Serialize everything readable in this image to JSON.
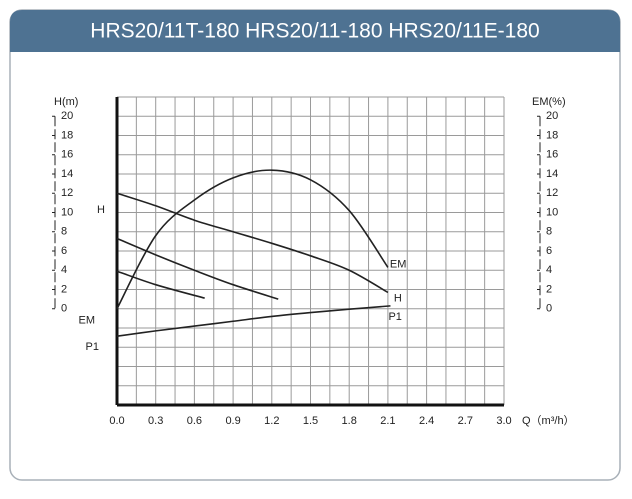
{
  "chart_data": {
    "type": "line",
    "title": "HRS20/11T-180 HRS20/11-180 HRS20/11E-180",
    "y_label": "H(m)",
    "y2_label": "EM(%)",
    "x_label": "Q（m³/h）",
    "xlim": [
      0,
      3.0
    ],
    "xticks": [
      {
        "value": 0,
        "label": "0.0"
      },
      0.3,
      0.6,
      0.9,
      1.2,
      1.5,
      1.8,
      2.1,
      2.4,
      2.7,
      {
        "value": 3,
        "label": "3.0"
      }
    ],
    "ylim": [
      -10,
      22
    ],
    "yticks": [
      0,
      2,
      4,
      6,
      8,
      10,
      12,
      14,
      16,
      18,
      20
    ],
    "y2lim": [
      -10,
      22
    ],
    "y2ticks": [
      0,
      2,
      4,
      6,
      8,
      10,
      12,
      14,
      16,
      18,
      20
    ],
    "grid": true,
    "series": [
      {
        "name": "H",
        "color": "#222222",
        "x": [
          0,
          0.3,
          0.6,
          0.9,
          1.2,
          1.5,
          1.8,
          2.1
        ],
        "values": [
          12,
          10.7,
          9.2,
          8.0,
          6.8,
          5.5,
          4.0,
          1.7
        ]
      },
      {
        "color": "#222222",
        "x": [
          0,
          0.3,
          0.6,
          0.9,
          1.25
        ],
        "values": [
          7.3,
          5.6,
          4.0,
          2.5,
          1.0
        ]
      },
      {
        "color": "#222222",
        "x": [
          0,
          0.3,
          0.68
        ],
        "values": [
          3.9,
          2.5,
          1.1
        ]
      },
      {
        "name": "EM",
        "color": "#222222",
        "axis": "y2",
        "x": [
          0,
          0.3,
          0.6,
          0.9,
          1.2,
          1.5,
          1.8,
          2.1
        ],
        "values": [
          0,
          7.6,
          11.3,
          13.6,
          14.4,
          13.4,
          10.2,
          4.3
        ]
      },
      {
        "name": "P1",
        "color": "#222222",
        "x": [
          0,
          0.3,
          0.6,
          0.9,
          1.2,
          1.5,
          1.8,
          2.12
        ],
        "values": [
          -2.85,
          -2.3,
          -1.8,
          -1.3,
          -0.8,
          -0.4,
          -0.05,
          0.3
        ]
      }
    ]
  }
}
